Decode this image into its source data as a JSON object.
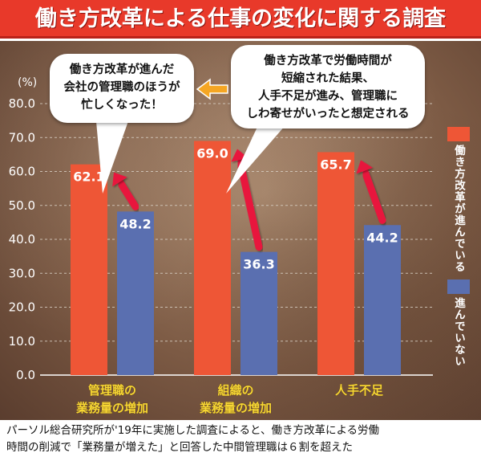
{
  "title": "働き方改革による仕事の変化に関する調査",
  "callouts": {
    "left": [
      "働き方改革が進んだ",
      "会社の管理職のほうが",
      "忙しくなった！"
    ],
    "right": [
      "働き方改革で労働時間が",
      "短縮された結果、",
      "人手不足が進み、管理職に",
      "しわ寄せがいったと想定される"
    ]
  },
  "caption": [
    "パーソル総合研究所が'19年に実施した調査によると、働き方改革による労働",
    "時間の削減で「業務量が増えた」と回答した中間管理職は６割を超えた"
  ],
  "colors": {
    "title_bg": "#e8392a",
    "series_advanced": "#ee5636",
    "series_not": "#5a6fb0",
    "arrow": "#e8183c",
    "orange_arrow": "#f5a623",
    "category_label": "#f7d733",
    "grid": "#d8cfc4"
  },
  "chart_data": {
    "type": "bar",
    "unit_label": "(%)",
    "categories": [
      [
        "管理職の",
        "業務量の増加"
      ],
      [
        "組織の",
        "業務量の増加"
      ],
      [
        "人手不足"
      ]
    ],
    "series": [
      {
        "name": "働き方改革が進んでいる",
        "values": [
          62.1,
          69.0,
          65.7
        ]
      },
      {
        "name": "進んでいない",
        "values": [
          48.2,
          36.3,
          44.2
        ]
      }
    ],
    "ylim": [
      0,
      80
    ],
    "yticks": [
      "0.0",
      "10.0",
      "20.0",
      "30.0",
      "40.0",
      "50.0",
      "60.0",
      "70.0",
      "80.0"
    ],
    "grid": true,
    "legend_position": "right"
  }
}
